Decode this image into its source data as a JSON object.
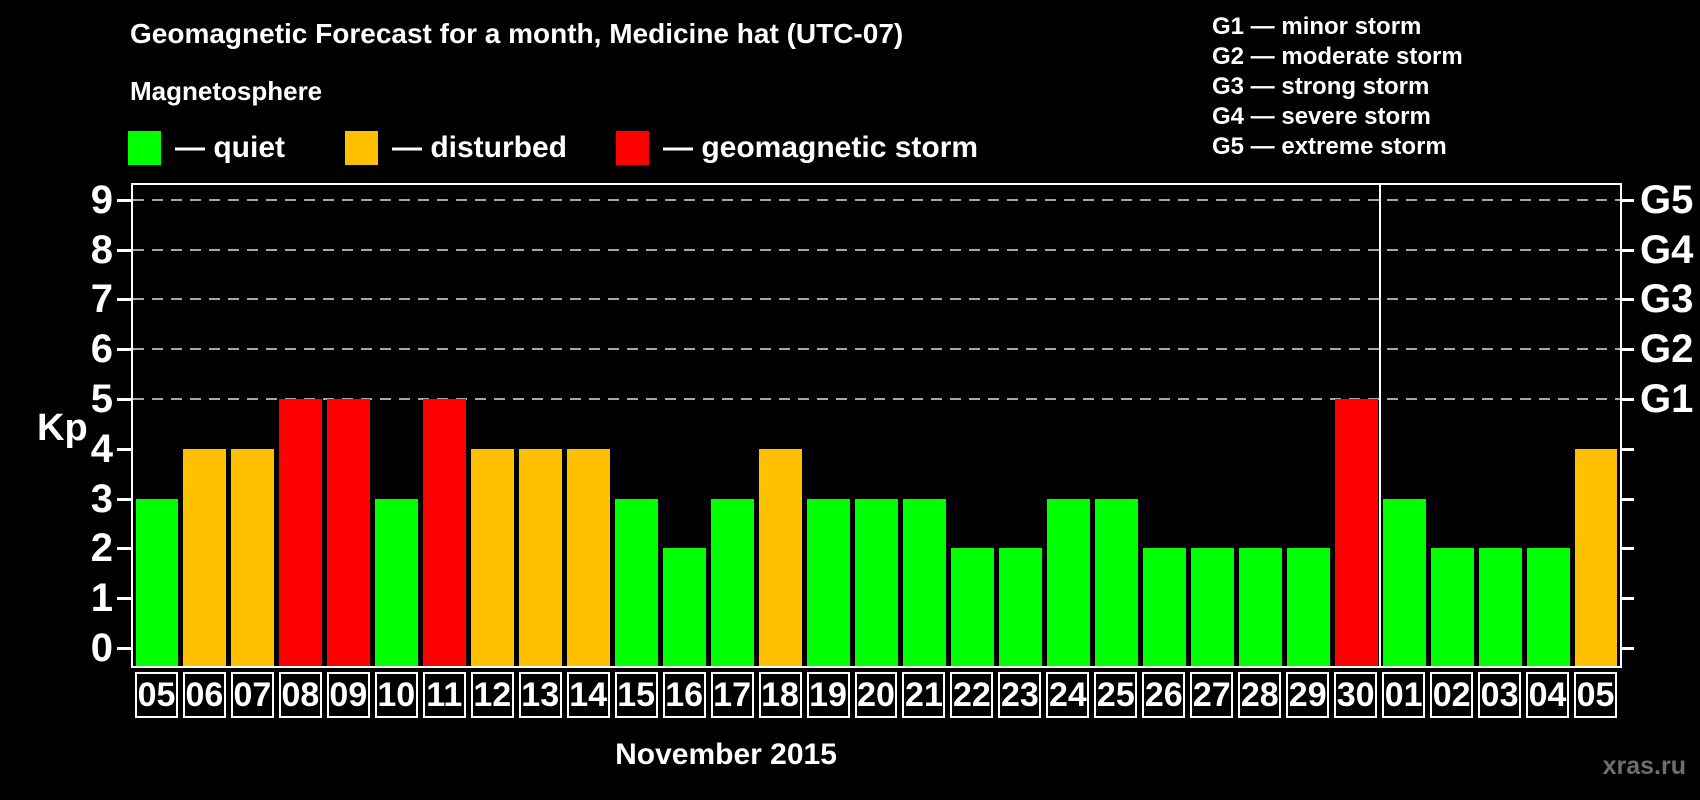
{
  "title": "Geomagnetic Forecast for a month, Medicine hat (UTC-07)",
  "subtitle": "Magnetosphere",
  "watermark": "xras.ru",
  "axis": {
    "y_label": "Kp"
  },
  "legend": {
    "items": [
      {
        "status": "quiet",
        "label": "— quiet",
        "color": "#00ff00"
      },
      {
        "status": "disturbed",
        "label": "— disturbed",
        "color": "#ffc000"
      },
      {
        "status": "storm",
        "label": "— geomagnetic storm",
        "color": "#ff0000"
      }
    ]
  },
  "g_scale_legend": [
    "G1 — minor storm",
    "G2 — moderate storm",
    "G3 — strong storm",
    "G4 — severe storm",
    "G5 — extreme storm"
  ],
  "chart_data": {
    "type": "bar",
    "title": "Geomagnetic Forecast for a month, Medicine hat (UTC-07)",
    "xlabel": "November 2015",
    "ylabel": "Kp",
    "ylim": [
      0,
      9
    ],
    "grid": "horizontal dashed lines at Kp 5,6,7,8,9",
    "legend_position": "top",
    "y_ticks": [
      0,
      1,
      2,
      3,
      4,
      5,
      6,
      7,
      8,
      9
    ],
    "g_levels": [
      {
        "kp": 5,
        "label": "G1"
      },
      {
        "kp": 6,
        "label": "G2"
      },
      {
        "kp": 7,
        "label": "G3"
      },
      {
        "kp": 8,
        "label": "G4"
      },
      {
        "kp": 9,
        "label": "G5"
      }
    ],
    "month_divider_after_index": 25,
    "categories": [
      "05",
      "06",
      "07",
      "08",
      "09",
      "10",
      "11",
      "12",
      "13",
      "14",
      "15",
      "16",
      "17",
      "18",
      "19",
      "20",
      "21",
      "22",
      "23",
      "24",
      "25",
      "26",
      "27",
      "28",
      "29",
      "30",
      "01",
      "02",
      "03",
      "04",
      "05"
    ],
    "bars": [
      {
        "day": "05",
        "kp": 3,
        "status": "quiet"
      },
      {
        "day": "06",
        "kp": 4,
        "status": "disturbed"
      },
      {
        "day": "07",
        "kp": 4,
        "status": "disturbed"
      },
      {
        "day": "08",
        "kp": 5,
        "status": "storm"
      },
      {
        "day": "09",
        "kp": 5,
        "status": "storm"
      },
      {
        "day": "10",
        "kp": 3,
        "status": "quiet"
      },
      {
        "day": "11",
        "kp": 5,
        "status": "storm"
      },
      {
        "day": "12",
        "kp": 4,
        "status": "disturbed"
      },
      {
        "day": "13",
        "kp": 4,
        "status": "disturbed"
      },
      {
        "day": "14",
        "kp": 4,
        "status": "disturbed"
      },
      {
        "day": "15",
        "kp": 3,
        "status": "quiet"
      },
      {
        "day": "16",
        "kp": 2,
        "status": "quiet"
      },
      {
        "day": "17",
        "kp": 3,
        "status": "quiet"
      },
      {
        "day": "18",
        "kp": 4,
        "status": "disturbed"
      },
      {
        "day": "19",
        "kp": 3,
        "status": "quiet"
      },
      {
        "day": "20",
        "kp": 3,
        "status": "quiet"
      },
      {
        "day": "21",
        "kp": 3,
        "status": "quiet"
      },
      {
        "day": "22",
        "kp": 2,
        "status": "quiet"
      },
      {
        "day": "23",
        "kp": 2,
        "status": "quiet"
      },
      {
        "day": "24",
        "kp": 3,
        "status": "quiet"
      },
      {
        "day": "25",
        "kp": 3,
        "status": "quiet"
      },
      {
        "day": "26",
        "kp": 2,
        "status": "quiet"
      },
      {
        "day": "27",
        "kp": 2,
        "status": "quiet"
      },
      {
        "day": "28",
        "kp": 2,
        "status": "quiet"
      },
      {
        "day": "29",
        "kp": 2,
        "status": "quiet"
      },
      {
        "day": "30",
        "kp": 5,
        "status": "storm"
      },
      {
        "day": "01",
        "kp": 3,
        "status": "quiet"
      },
      {
        "day": "02",
        "kp": 2,
        "status": "quiet"
      },
      {
        "day": "03",
        "kp": 2,
        "status": "quiet"
      },
      {
        "day": "04",
        "kp": 2,
        "status": "quiet"
      },
      {
        "day": "05",
        "kp": 4,
        "status": "disturbed"
      }
    ]
  }
}
